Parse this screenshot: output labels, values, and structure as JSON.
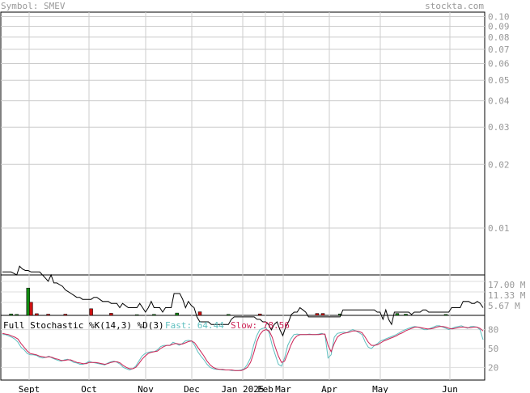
{
  "header": {
    "symbol_label": "Symbol: SMEV",
    "site": "stockta.com"
  },
  "chart_data": [
    {
      "type": "line",
      "panel": "price",
      "yscale": "log",
      "ylim": [
        0.006,
        0.105
      ],
      "y_ticks": [
        0.1,
        0.09,
        0.08,
        0.07,
        0.06,
        0.05,
        0.04,
        0.03,
        0.02,
        0.01
      ],
      "y_tick_labels": [
        "0.10",
        "0.09",
        "0.08",
        "0.07",
        "0.06",
        "0.05",
        "0.04",
        "0.03",
        "0.02",
        "0.01"
      ],
      "grid": true,
      "series": []
    },
    {
      "type": "line",
      "panel": "price-lower",
      "series": [
        {
          "color": "#000000",
          "values": [
            0.0062,
            0.0062,
            0.0062,
            0.0062,
            0.0061,
            0.006,
            0.0066,
            0.0064,
            0.0063,
            0.0063,
            0.0062,
            0.0062,
            0.0062,
            0.0062,
            0.006,
            0.0058,
            0.0056,
            0.006,
            0.0055,
            0.0055,
            0.0054,
            0.0053,
            0.0051,
            0.005,
            0.0049,
            0.0048,
            0.0047,
            0.0047,
            0.0046,
            0.0046,
            0.0046,
            0.0046,
            0.0047,
            0.0047,
            0.0046,
            0.0045,
            0.0045,
            0.0045,
            0.0044,
            0.0044,
            0.0044,
            0.0042,
            0.0044,
            0.0043,
            0.0042,
            0.0042,
            0.0042,
            0.0042,
            0.0044,
            0.0042,
            0.004,
            0.0042,
            0.0045,
            0.0042,
            0.0042,
            0.0042,
            0.004,
            0.0042,
            0.0042,
            0.0042,
            0.0049,
            0.0049,
            0.0049,
            0.0046,
            0.0042,
            0.0045,
            0.0043,
            0.0042,
            0.0038,
            0.0036,
            0.0036,
            0.0036,
            0.0036,
            0.0035,
            0.0035,
            0.0035,
            0.0035,
            0.0035,
            0.0035,
            0.0035,
            0.0037,
            0.0038,
            0.0038,
            0.0038,
            0.0038,
            0.0038,
            0.0038,
            0.0038,
            0.0038,
            0.0037,
            0.0037,
            0.0036,
            0.0036,
            0.0035,
            0.0033,
            0.0035,
            0.0036,
            0.0033,
            0.0031,
            0.0034,
            0.0036,
            0.0039,
            0.004,
            0.004,
            0.0042,
            0.0041,
            0.004,
            0.0038,
            0.0038,
            0.0038,
            0.0038,
            0.0038,
            0.0038,
            0.0038,
            0.0038,
            0.0038,
            0.0038,
            0.0038,
            0.0038,
            0.0041,
            0.0041,
            0.0041,
            0.0041,
            0.0041,
            0.0041,
            0.0041,
            0.0041,
            0.0041,
            0.0041,
            0.0041,
            0.0041,
            0.004,
            0.004,
            0.0037,
            0.0041,
            0.0037,
            0.0035,
            0.004,
            0.004,
            0.004,
            0.004,
            0.004,
            0.004,
            0.0039,
            0.004,
            0.004,
            0.004,
            0.0041,
            0.0041,
            0.004,
            0.004,
            0.004,
            0.004,
            0.004,
            0.004,
            0.004,
            0.004,
            0.0042,
            0.0042,
            0.0042,
            0.0042,
            0.0045,
            0.0045,
            0.0045,
            0.0044,
            0.0044,
            0.0045,
            0.0044,
            0.0042
          ]
        }
      ],
      "volume_labels": [
        "17.00 M",
        "11.33 M",
        "5.67 M"
      ]
    },
    {
      "type": "bar",
      "panel": "volume",
      "ylim": [
        0,
        17000000
      ],
      "bars": [
        {
          "i": 3,
          "v": 0.6,
          "c": "g"
        },
        {
          "i": 5,
          "v": 0.4,
          "c": "g"
        },
        {
          "i": 9,
          "v": 11.5,
          "c": "g"
        },
        {
          "i": 10,
          "v": 5.5,
          "c": "r"
        },
        {
          "i": 12,
          "v": 0.7,
          "c": "r"
        },
        {
          "i": 16,
          "v": 0.5,
          "c": "r"
        },
        {
          "i": 22,
          "v": 0.5,
          "c": "r"
        },
        {
          "i": 31,
          "v": 2.8,
          "c": "r"
        },
        {
          "i": 38,
          "v": 0.9,
          "c": "r"
        },
        {
          "i": 47,
          "v": 0.3,
          "c": "g"
        },
        {
          "i": 53,
          "v": 0.4,
          "c": "g"
        },
        {
          "i": 61,
          "v": 1.0,
          "c": "g"
        },
        {
          "i": 69,
          "v": 1.5,
          "c": "r"
        },
        {
          "i": 79,
          "v": 0.4,
          "c": "g"
        },
        {
          "i": 90,
          "v": 0.6,
          "c": "r"
        },
        {
          "i": 110,
          "v": 0.8,
          "c": "r"
        },
        {
          "i": 112,
          "v": 0.8,
          "c": "r"
        },
        {
          "i": 118,
          "v": 0.6,
          "c": "g"
        },
        {
          "i": 138,
          "v": 0.8,
          "c": "g"
        },
        {
          "i": 141,
          "v": 0.5,
          "c": "g"
        },
        {
          "i": 155,
          "v": 0.4,
          "c": "g"
        }
      ]
    },
    {
      "type": "line",
      "panel": "stochastic",
      "title": "Full Stochastic %K(14,3) %D(3)",
      "fast_label": "Fast: 64.44",
      "slow_label": "Slow: 78.56",
      "ylim": [
        0,
        100
      ],
      "y_ticks": [
        80,
        50,
        20
      ],
      "y_tick_labels": [
        "80",
        "50",
        "20"
      ],
      "series": [
        {
          "color": "#5fbfbf",
          "values": [
            72,
            72,
            70,
            68,
            65,
            60,
            52,
            48,
            42,
            40,
            40,
            39,
            36,
            35,
            36,
            38,
            35,
            33,
            31,
            30,
            32,
            33,
            31,
            28,
            27,
            25,
            25,
            27,
            30,
            28,
            27,
            26,
            25,
            24,
            27,
            29,
            30,
            28,
            25,
            20,
            18,
            16,
            18,
            22,
            30,
            38,
            42,
            44,
            45,
            45,
            48,
            53,
            55,
            55,
            55,
            60,
            58,
            55,
            58,
            62,
            63,
            62,
            55,
            45,
            38,
            32,
            25,
            20,
            18,
            17,
            17,
            16,
            16,
            16,
            15,
            15,
            15,
            16,
            18,
            25,
            35,
            55,
            70,
            80,
            82,
            83,
            75,
            55,
            40,
            25,
            22,
            35,
            55,
            65,
            72,
            73,
            72,
            72,
            72,
            73,
            72,
            72,
            73,
            74,
            72,
            35,
            40,
            68,
            74,
            75,
            76,
            75,
            78,
            80,
            78,
            75,
            72,
            60,
            52,
            50,
            55,
            58,
            62,
            64,
            66,
            68,
            70,
            72,
            75,
            78,
            80,
            82,
            84,
            85,
            84,
            82,
            80,
            80,
            82,
            84,
            86,
            86,
            84,
            82,
            80,
            82,
            84,
            85,
            86,
            84,
            82,
            85,
            85,
            84,
            80,
            64
          ]
        },
        {
          "color": "#cc2255",
          "values": [
            74,
            73,
            72,
            70,
            68,
            65,
            58,
            52,
            46,
            42,
            41,
            40,
            38,
            37,
            36,
            37,
            36,
            34,
            33,
            31,
            31,
            32,
            32,
            30,
            28,
            27,
            26,
            26,
            28,
            28,
            28,
            27,
            26,
            25,
            26,
            28,
            29,
            29,
            27,
            23,
            20,
            18,
            18,
            20,
            26,
            33,
            38,
            42,
            44,
            45,
            46,
            50,
            53,
            55,
            55,
            57,
            58,
            57,
            57,
            59,
            61,
            62,
            59,
            52,
            45,
            38,
            30,
            24,
            20,
            18,
            17,
            17,
            16,
            16,
            16,
            15,
            15,
            15,
            17,
            20,
            28,
            42,
            60,
            72,
            78,
            80,
            78,
            68,
            52,
            38,
            28,
            30,
            42,
            55,
            65,
            70,
            72,
            72,
            72,
            72,
            72,
            72,
            72,
            73,
            73,
            55,
            45,
            58,
            68,
            72,
            74,
            75,
            76,
            78,
            78,
            77,
            75,
            68,
            60,
            55,
            55,
            56,
            59,
            62,
            64,
            66,
            68,
            70,
            73,
            75,
            78,
            80,
            82,
            84,
            84,
            83,
            82,
            81,
            81,
            82,
            84,
            85,
            85,
            84,
            82,
            81,
            82,
            83,
            84,
            84,
            83,
            83,
            84,
            84,
            82,
            78
          ]
        }
      ]
    },
    {
      "type": "axis",
      "panel": "x",
      "x_tick_labels": [
        "Sept",
        "Oct",
        "Nov",
        "Dec",
        "Jan 2025",
        "Feb",
        "Mar",
        "Apr",
        "May",
        "Jun"
      ]
    }
  ]
}
